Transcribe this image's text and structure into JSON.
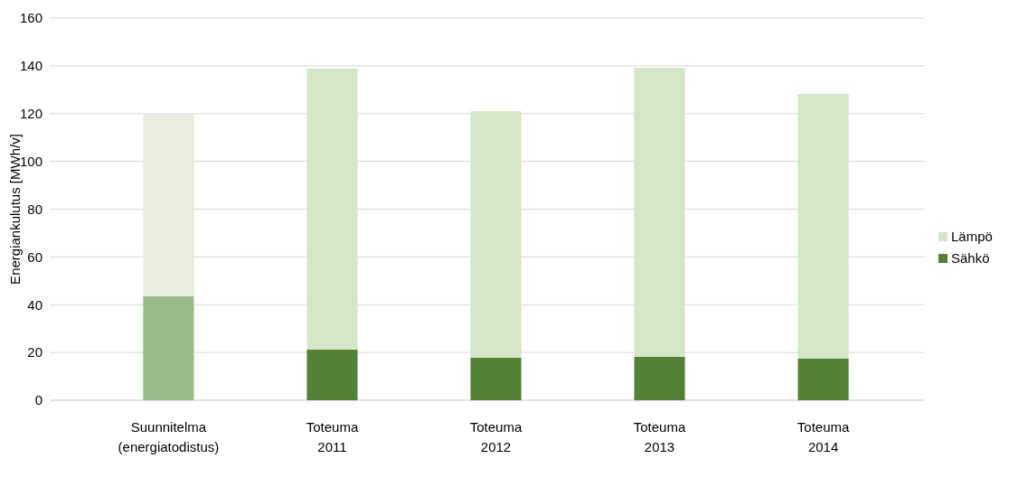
{
  "chart_data": {
    "type": "bar",
    "stacked": true,
    "ylabel": "Energiankulutus [MWh/v]",
    "categories": [
      "Suunnitelma\n(energiatodistus)",
      "Toteuma\n2011",
      "Toteuma\n2012",
      "Toteuma\n2013",
      "Toteuma\n2014"
    ],
    "series": [
      {
        "name": "Sähkö",
        "color": "#538135",
        "colors": [
          "#9aba88",
          "#538135",
          "#538135",
          "#538135",
          "#538135"
        ],
        "values": [
          43.5,
          21.2,
          17.8,
          18.2,
          17.4
        ]
      },
      {
        "name": "Lämpö",
        "color": "#d5e5c8",
        "colors": [
          "#e6efdf",
          "#d5e5c8",
          "#d5e5c8",
          "#d5e5c8",
          "#d5e5c8"
        ],
        "values": [
          76.5,
          117.6,
          103.2,
          121,
          110.8
        ]
      }
    ],
    "ylim": [
      0,
      160
    ],
    "yticks": [
      0,
      20,
      40,
      60,
      80,
      100,
      120,
      140,
      160
    ],
    "grid": "y",
    "legend": "right"
  }
}
